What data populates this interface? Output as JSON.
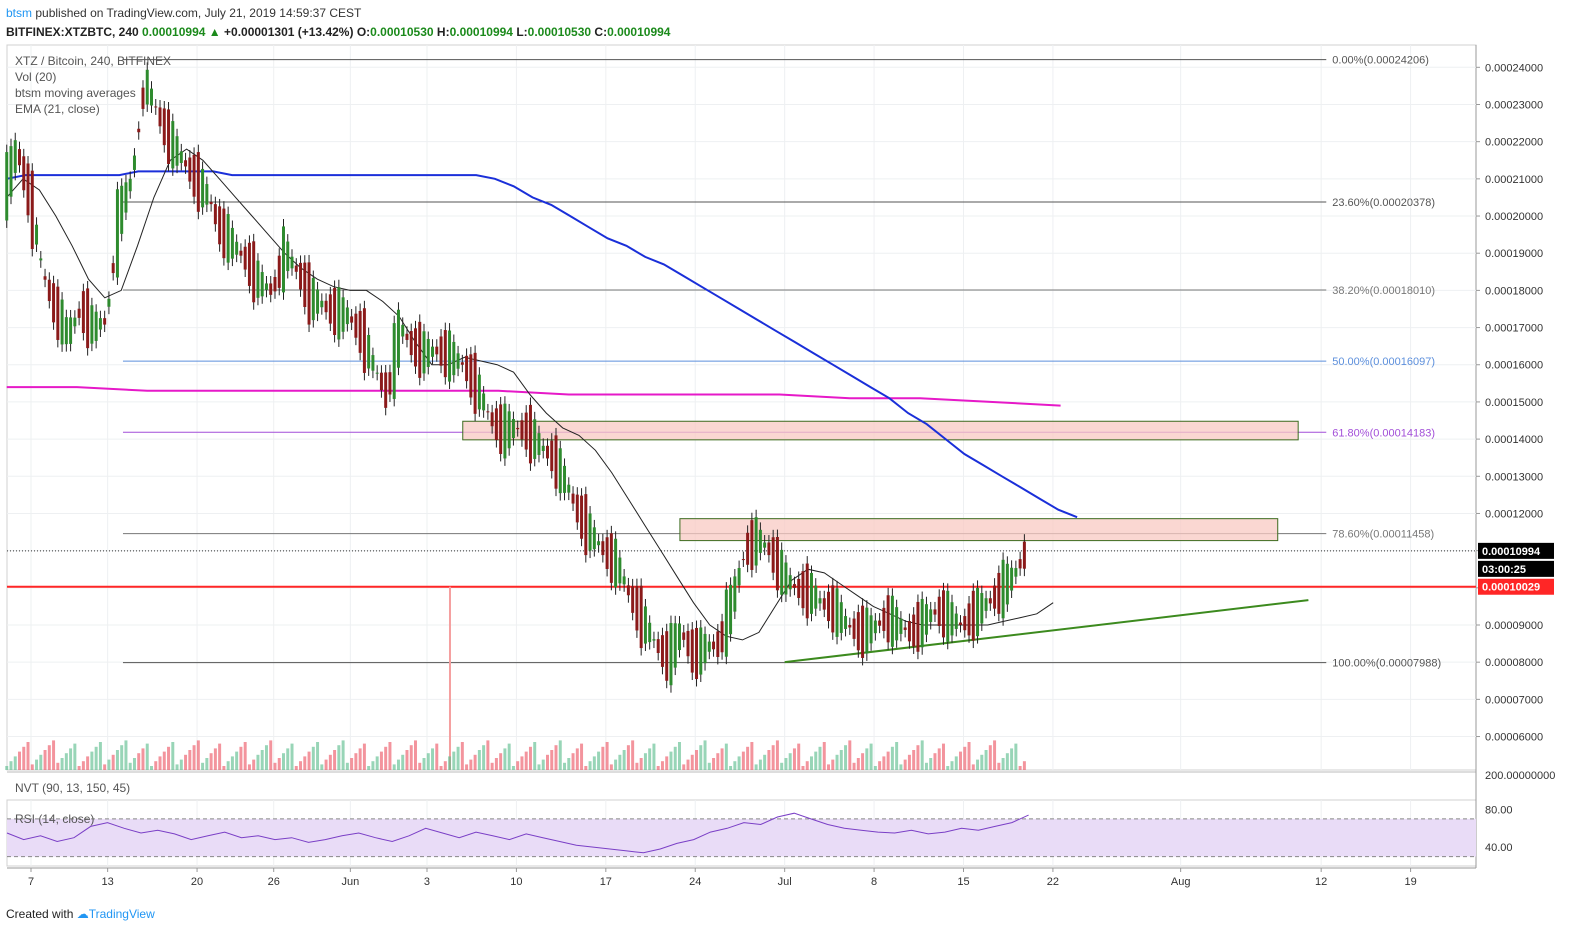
{
  "header": {
    "user": "btsm",
    "published_text": "published on TradingView.com, July 21, 2019 14:59:37 CEST",
    "symbol": "BITFINEX:XTZBTC, 240",
    "last": "0.00010994",
    "change_arrow": "▲",
    "change": "+0.00001301 (+13.42%)",
    "o_label": "O:",
    "o": "0.00010530",
    "h_label": "H:",
    "h": "0.00010994",
    "l_label": "L:",
    "l": "0.00010530",
    "c_label": "C:",
    "c": "0.00010994"
  },
  "legend": {
    "line1": "XTZ / Bitcoin, 240, BITFINEX",
    "line2": "Vol (20)",
    "line3": "btsm moving averages",
    "line4": "EMA (21, close)",
    "nvt": "NVT (90, 13, 150, 45)",
    "rsi": "RSI (14, close)"
  },
  "footer": {
    "created": "Created with",
    "brand": "TradingView"
  },
  "colors": {
    "up": "#53b987",
    "down": "#eb4d5c",
    "blue_ma": "#1a2fd9",
    "magenta_ma": "#e619c8",
    "support": "#ff2626",
    "trend": "#3c8a1e",
    "zone_fill": "#f8c9c3",
    "zone_border": "#3c6b1e",
    "rsi_line": "#7a3fc6",
    "rsi_band": "#e9dcf7",
    "ema": "#222222",
    "label_bg": "#000000"
  },
  "chart_data": {
    "type": "candlestick",
    "title": "XTZ / Bitcoin, 240, BITFINEX",
    "ylim": [
      5.1e-05,
      0.000246
    ],
    "y_ticks": [
      "0.00024000",
      "0.00023000",
      "0.00022000",
      "0.00021000",
      "0.00020000",
      "0.00019000",
      "0.00018000",
      "0.00017000",
      "0.00016000",
      "0.00015000",
      "0.00014000",
      "0.00013000",
      "0.00012000",
      "0.00011000",
      "0.00010000",
      "0.00009000",
      "0.00008000",
      "0.00007000",
      "0.00006000"
    ],
    "y_tick_values": [
      0.00024,
      0.00023,
      0.00022,
      0.00021,
      0.0002,
      0.00019,
      0.00018,
      0.00017,
      0.00016,
      0.00015,
      0.00014,
      0.00013,
      0.00012,
      0.00011,
      0.0001,
      9e-05,
      8e-05,
      7e-05,
      6e-05
    ],
    "x_ticks": [
      "7",
      "13",
      "20",
      "26",
      "Jun",
      "3",
      "10",
      "17",
      "24",
      "Jul",
      "8",
      "15",
      "22",
      "Aug",
      "12",
      "19"
    ],
    "x_tick_index": [
      0,
      6,
      13,
      19,
      25,
      31,
      38,
      45,
      52,
      59,
      66,
      73,
      80,
      90,
      101,
      108
    ],
    "price_path": [
      0.000206,
      0.000218,
      0.000205,
      0.000185,
      0.000175,
      0.000168,
      0.000175,
      0.00017,
      0.000172,
      0.0002,
      0.00021,
      0.000236,
      0.000228,
      0.00022,
      0.000215,
      0.00021,
      0.000205,
      0.000196,
      0.000192,
      0.000188,
      0.000182,
      0.00018,
      0.00019,
      0.000185,
      0.000178,
      0.000176,
      0.000174,
      0.000173,
      0.000168,
      0.000159,
      0.000152,
      0.00017,
      0.000165,
      0.000163,
      0.000164,
      0.000162,
      0.00016,
      0.000154,
      0.000146,
      0.000142,
      0.000143,
      0.000142,
      0.000138,
      0.000135,
      0.000128,
      0.00012,
      0.000114,
      0.00011,
      0.000106,
      9.8e-05,
      9.1e-05,
      8.5e-05,
      8.1e-05,
      8.8e-05,
      8.2e-05,
      8.4e-05,
      8.5e-05,
      9.6e-05,
      0.00011,
      0.000113,
      0.00011,
      0.000103,
      0.0001,
      9.9e-05,
      9.6e-05,
      9.4e-05,
      9e-05,
      8.8e-05,
      8.9e-05,
      9.2e-05,
      9e-05,
      8.8e-05,
      9.1e-05,
      9.4e-05,
      9.2e-05,
      9e-05,
      9.3e-05,
      9.6e-05,
      9.9e-05,
      0.000103,
      0.00010994
    ],
    "blue_ma_path": [
      0.00021,
      0.000211,
      0.000211,
      0.000211,
      0.000211,
      0.000211,
      0.000211,
      0.000212,
      0.000212,
      0.000212,
      0.000212,
      0.000212,
      0.000211,
      0.000211,
      0.000211,
      0.000211,
      0.000211,
      0.000211,
      0.000211,
      0.000211,
      0.000211,
      0.000211,
      0.000211,
      0.000211,
      0.000211,
      0.000211,
      0.00021,
      0.000208,
      0.000205,
      0.000203,
      0.0002,
      0.000197,
      0.000194,
      0.000192,
      0.000189,
      0.000187,
      0.000184,
      0.000181,
      0.000178,
      0.000175,
      0.000172,
      0.000169,
      0.000166,
      0.000163,
      0.00016,
      0.000157,
      0.000154,
      0.000151,
      0.000147,
      0.000144,
      0.00014,
      0.000136,
      0.000133,
      0.00013,
      0.000127,
      0.000124,
      0.000121,
      0.000119
    ],
    "magenta_ma_path": [
      0.000154,
      0.000154,
      0.000153,
      0.000153,
      0.000153,
      0.000153,
      0.000153,
      0.000153,
      0.000152,
      0.000152,
      0.000152,
      0.000152,
      0.000151,
      0.000151,
      0.00015,
      0.000149
    ],
    "ema_path": [
      0.000205,
      0.00021,
      0.000207,
      0.0002,
      0.000192,
      0.000183,
      0.000178,
      0.00018,
      0.000192,
      0.000205,
      0.000215,
      0.000218,
      0.000215,
      0.00021,
      0.000205,
      0.0002,
      0.000195,
      0.00019,
      0.000186,
      0.000183,
      0.000181,
      0.00018,
      0.00018,
      0.000177,
      0.000173,
      0.000166,
      0.00016,
      0.00016,
      0.000162,
      0.000161,
      0.00016,
      0.000158,
      0.000152,
      0.000147,
      0.000143,
      0.000141,
      0.000137,
      0.000131,
      0.000124,
      0.000117,
      0.00011,
      0.000103,
      9.6e-05,
      9e-05,
      8.7e-05,
      8.6e-05,
      8.8e-05,
      9.5e-05,
      0.000102,
      0.000105,
      0.000104,
      0.000101,
      9.8e-05,
      9.5e-05,
      9.3e-05,
      9.1e-05,
      9e-05,
      9e-05,
      9e-05,
      9e-05,
      9e-05,
      9.1e-05,
      9.2e-05,
      9.3e-05,
      9.6e-05
    ],
    "fib_levels": [
      {
        "label": "0.00%(0.00024206)",
        "value": 0.00024206,
        "color": "#555555"
      },
      {
        "label": "23.60%(0.00020378)",
        "value": 0.00020378,
        "color": "#555555"
      },
      {
        "label": "38.20%(0.00018010)",
        "value": 0.0001801,
        "color": "#777777"
      },
      {
        "label": "50.00%(0.00016097)",
        "value": 0.00016097,
        "color": "#5c8fdc"
      },
      {
        "label": "61.80%(0.00014183)",
        "value": 0.00014183,
        "color": "#a24fd8"
      },
      {
        "label": "78.60%(0.00011458)",
        "value": 0.00011458,
        "color": "#777777"
      },
      {
        "label": "100.00%(0.00007988)",
        "value": 7.988e-05,
        "color": "#555555"
      }
    ],
    "zones": [
      {
        "from": 0.0001398,
        "to": 0.0001448
      },
      {
        "from": 0.0001127,
        "to": 0.0001186
      }
    ],
    "support_level": {
      "value": 0.00010029,
      "label": "0.00010029"
    },
    "last_price": {
      "value": 0.00010994,
      "label": "0.00010994"
    },
    "countdown": "03:00:25",
    "trendline": {
      "from": [
        59.0,
        8e-05
      ],
      "to": [
        100.0,
        9.67e-05
      ]
    },
    "volume_axis_label": "200.00000000",
    "rsi": {
      "ylim": [
        20,
        90
      ],
      "levels": [
        70,
        30
      ],
      "ticks": [
        "80.00",
        "40.00"
      ],
      "tick_values": [
        80,
        40
      ],
      "path": [
        55,
        48,
        52,
        46,
        50,
        62,
        66,
        60,
        55,
        58,
        54,
        48,
        52,
        56,
        50,
        52,
        48,
        50,
        45,
        48,
        52,
        55,
        50,
        46,
        52,
        60,
        55,
        50,
        56,
        52,
        48,
        54,
        50,
        46,
        42,
        40,
        38,
        36,
        34,
        38,
        44,
        48,
        56,
        60,
        66,
        64,
        72,
        76,
        70,
        64,
        60,
        58,
        56,
        55,
        58,
        54,
        56,
        60,
        58,
        62,
        66,
        74
      ]
    }
  }
}
